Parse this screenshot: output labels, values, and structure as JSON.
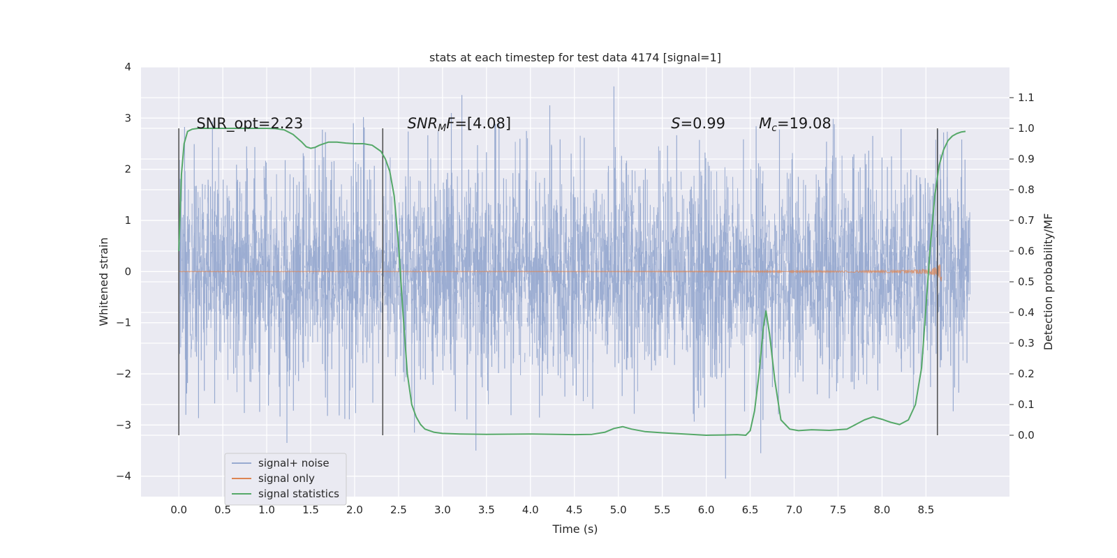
{
  "chart_data": {
    "type": "line",
    "title": "stats at each timestep for test data 4174 [signal=1]",
    "xlabel": "Time (s)",
    "ylabel_left": "Whitened strain",
    "ylabel_right": "Detection probability/MF",
    "xlim": [
      -0.43,
      9.45
    ],
    "ylim_left": [
      -4.4,
      4.0
    ],
    "ylim_right": [
      -0.2,
      1.2
    ],
    "xticks": [
      0.0,
      0.5,
      1.0,
      1.5,
      2.0,
      2.5,
      3.0,
      3.5,
      4.0,
      4.5,
      5.0,
      5.5,
      6.0,
      6.5,
      7.0,
      7.5,
      8.0,
      8.5
    ],
    "xtick_labels": [
      "0.0",
      "0.5",
      "1.0",
      "1.5",
      "2.0",
      "2.5",
      "3.0",
      "3.5",
      "4.0",
      "4.5",
      "5.0",
      "5.5",
      "6.0",
      "6.5",
      "7.0",
      "7.5",
      "8.0",
      "8.5"
    ],
    "yticks_left": [
      -4,
      -3,
      -2,
      -1,
      0,
      1,
      2,
      3,
      4
    ],
    "ytick_labels_left": [
      "−4",
      "−3",
      "−2",
      "−1",
      "0",
      "1",
      "2",
      "3",
      "4"
    ],
    "yticks_right": [
      0.0,
      0.1,
      0.2,
      0.3,
      0.4,
      0.5,
      0.6,
      0.7,
      0.8,
      0.9,
      1.0,
      1.1
    ],
    "ytick_labels_right": [
      "0.0",
      "0.1",
      "0.2",
      "0.3",
      "0.4",
      "0.5",
      "0.6",
      "0.7",
      "0.8",
      "0.9",
      "1.0",
      "1.1"
    ],
    "annotations": [
      {
        "id": "snr-opt",
        "text": "SNR_opt=2.23",
        "x": 0.2,
        "y": 2.8
      },
      {
        "id": "snr-mf",
        "text": "SNR_MF=[4.08]",
        "x": 2.6,
        "y": 2.8
      },
      {
        "id": "s-value",
        "text": "S=0.99",
        "x": 5.6,
        "y": 2.8
      },
      {
        "id": "mc-value",
        "text": "M_c=19.08",
        "x": 6.6,
        "y": 2.8
      }
    ],
    "vertical_lines": [
      {
        "x": 0.0,
        "ymin": -3.2,
        "ymax": 2.8
      },
      {
        "x": 2.32,
        "ymin": -3.2,
        "ymax": 2.8
      },
      {
        "x": 8.63,
        "ymin": -3.2,
        "ymax": 2.8
      }
    ],
    "legend_position": "lower-left",
    "series": [
      {
        "name": "signal+ noise",
        "axis": "left",
        "color": "#98aad0",
        "kind": "noise",
        "x_range": [
          0.0,
          9.0
        ],
        "std": 0.78,
        "extremes": [
          {
            "x": 3.22,
            "y": 3.45
          },
          {
            "x": 4.95,
            "y": 3.62
          },
          {
            "x": 4.22,
            "y": 3.25
          },
          {
            "x": 3.38,
            "y": -3.5
          },
          {
            "x": 6.22,
            "y": -4.05
          },
          {
            "x": 6.62,
            "y": -3.55
          },
          {
            "x": 1.23,
            "y": -3.35
          },
          {
            "x": 0.08,
            "y": -2.8
          },
          {
            "x": 2.68,
            "y": -3.15
          },
          {
            "x": 2.1,
            "y": 3.02
          },
          {
            "x": 8.7,
            "y": 2.72
          },
          {
            "x": 3.1,
            "y": 3.1
          }
        ]
      },
      {
        "name": "signal only",
        "axis": "left",
        "color": "#dd8452",
        "kind": "chirp",
        "x_range": [
          0.0,
          8.68
        ],
        "peak_amplitude": 0.42
      },
      {
        "name": "signal statistics",
        "axis": "right",
        "color": "#55a868",
        "kind": "line",
        "x": [
          0.0,
          0.03,
          0.06,
          0.1,
          0.15,
          0.22,
          0.3,
          0.45,
          0.6,
          0.8,
          1.0,
          1.1,
          1.2,
          1.3,
          1.4,
          1.45,
          1.5,
          1.55,
          1.6,
          1.7,
          1.8,
          1.9,
          2.0,
          2.1,
          2.2,
          2.3,
          2.35,
          2.4,
          2.45,
          2.5,
          2.55,
          2.6,
          2.65,
          2.7,
          2.75,
          2.8,
          2.9,
          3.0,
          3.2,
          3.5,
          4.0,
          4.3,
          4.5,
          4.7,
          4.85,
          4.95,
          5.05,
          5.15,
          5.3,
          5.5,
          5.75,
          6.0,
          6.2,
          6.35,
          6.45,
          6.5,
          6.55,
          6.6,
          6.65,
          6.68,
          6.72,
          6.78,
          6.85,
          6.95,
          7.05,
          7.2,
          7.4,
          7.6,
          7.8,
          7.9,
          8.0,
          8.1,
          8.2,
          8.3,
          8.38,
          8.45,
          8.5,
          8.55,
          8.6,
          8.65,
          8.7,
          8.75,
          8.8,
          8.85,
          8.9,
          8.95
        ],
        "y": [
          0.6,
          0.85,
          0.95,
          0.99,
          0.997,
          1.0,
          1.0,
          1.0,
          1.0,
          1.0,
          1.0,
          0.999,
          0.995,
          0.98,
          0.955,
          0.94,
          0.935,
          0.938,
          0.945,
          0.955,
          0.955,
          0.952,
          0.95,
          0.95,
          0.945,
          0.925,
          0.9,
          0.86,
          0.78,
          0.62,
          0.4,
          0.2,
          0.1,
          0.06,
          0.035,
          0.02,
          0.01,
          0.006,
          0.004,
          0.003,
          0.004,
          0.003,
          0.002,
          0.003,
          0.01,
          0.022,
          0.028,
          0.02,
          0.012,
          0.008,
          0.004,
          0.0,
          0.001,
          0.002,
          0.0,
          0.015,
          0.08,
          0.2,
          0.35,
          0.405,
          0.33,
          0.18,
          0.05,
          0.02,
          0.015,
          0.018,
          0.016,
          0.02,
          0.05,
          0.06,
          0.052,
          0.042,
          0.035,
          0.05,
          0.1,
          0.22,
          0.42,
          0.62,
          0.78,
          0.88,
          0.93,
          0.96,
          0.975,
          0.983,
          0.988,
          0.99
        ]
      }
    ]
  }
}
